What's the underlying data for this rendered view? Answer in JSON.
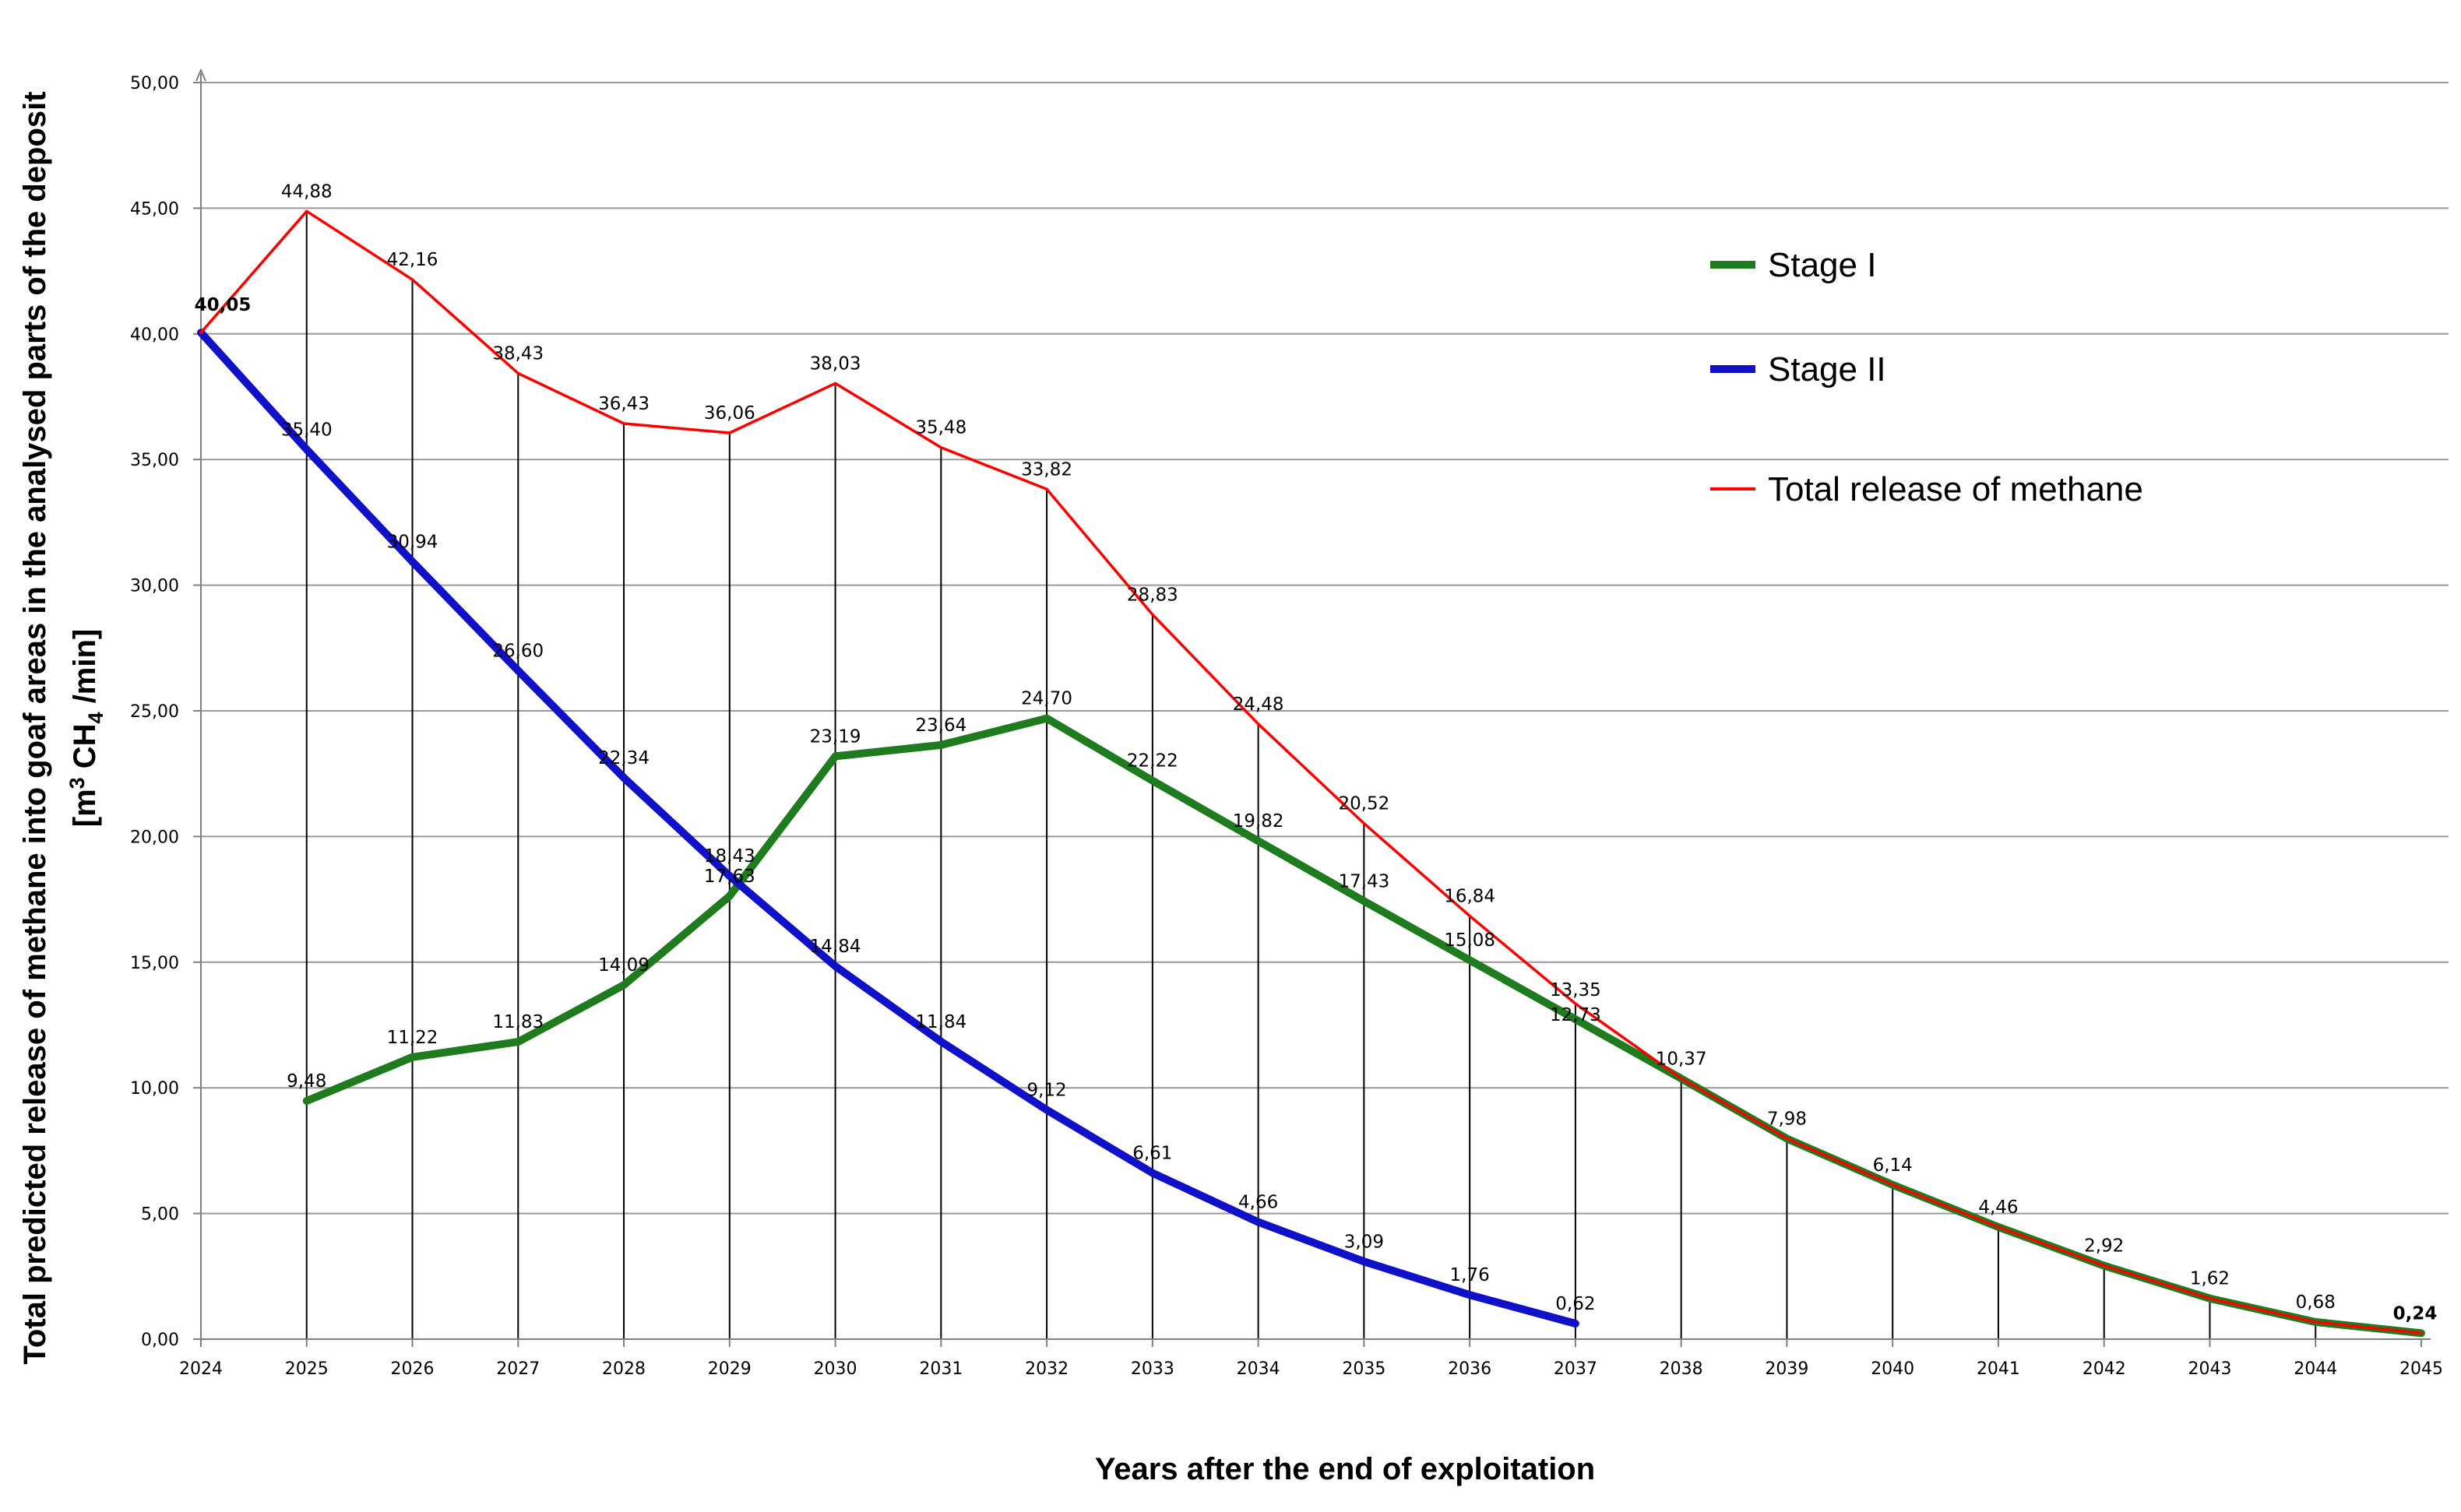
{
  "chart_data": {
    "type": "line",
    "title": "",
    "xlabel": "Years after the end of exploitation",
    "ylabel_line1": "Total predicted release of methane into goaf areas in the analysed parts of the deposit",
    "ylabel_line2_prefix": "[m",
    "ylabel_line2_sup": "3",
    "ylabel_line2_mid": " CH",
    "ylabel_line2_sub": "4",
    "ylabel_line2_suffix": " /min]",
    "ylim": [
      0,
      50
    ],
    "ytick_values": [
      0,
      5,
      10,
      15,
      20,
      25,
      30,
      35,
      40,
      45,
      50
    ],
    "ytick_labels": [
      "0,00",
      "5,00",
      "10,00",
      "15,00",
      "20,00",
      "25,00",
      "30,00",
      "35,00",
      "40,00",
      "45,00",
      "50,00"
    ],
    "categories": [
      "2024",
      "2025",
      "2026",
      "2027",
      "2028",
      "2029",
      "2030",
      "2031",
      "2032",
      "2033",
      "2034",
      "2035",
      "2036",
      "2037",
      "2038",
      "2039",
      "2040",
      "2041",
      "2042",
      "2043",
      "2044",
      "2045"
    ],
    "grid": true,
    "legend_position": "top-right",
    "series": [
      {
        "name": "Total release of methane",
        "color": "#ff0000",
        "values": [
          40.05,
          44.88,
          42.16,
          38.43,
          36.43,
          36.06,
          38.03,
          35.48,
          33.82,
          28.83,
          24.48,
          20.52,
          16.84,
          13.35,
          10.37,
          7.98,
          6.14,
          4.46,
          2.92,
          1.62,
          0.68,
          0.24
        ],
        "labels": [
          "40,05",
          "44,88",
          "42,16",
          "38,43",
          "36,43",
          "36,06",
          "38,03",
          "35,48",
          "33,82",
          "28,83",
          "24,48",
          "20,52",
          "16,84",
          "13,35",
          "10,37",
          "7,98",
          "6,14",
          "4,46",
          "2,92",
          "1,62",
          "0,68",
          "0,24"
        ]
      },
      {
        "name": "Stage I",
        "color": "#1e7b1e",
        "values": [
          null,
          9.48,
          11.22,
          11.83,
          14.09,
          17.63,
          23.19,
          23.64,
          24.7,
          22.22,
          19.82,
          17.43,
          15.08,
          12.73,
          10.37,
          7.98,
          6.14,
          4.46,
          2.92,
          1.62,
          0.68,
          0.24
        ],
        "labels": [
          null,
          "9,48",
          "11,22",
          "11,83",
          "14,09",
          "17,63",
          "23,19",
          "23,64",
          "24,70",
          "22,22",
          "19,82",
          "17,43",
          "15,08",
          "12,73",
          null,
          null,
          null,
          null,
          null,
          null,
          null,
          null
        ]
      },
      {
        "name": "Stage II",
        "color": "#1010c8",
        "values": [
          40.05,
          35.4,
          30.94,
          26.6,
          22.34,
          18.43,
          14.84,
          11.84,
          9.12,
          6.61,
          4.66,
          3.09,
          1.76,
          0.62,
          null,
          null,
          null,
          null,
          null,
          null,
          null,
          null
        ],
        "labels": [
          null,
          "35,40",
          "30,94",
          "26,60",
          "22,34",
          "18,43",
          "14,84",
          "11,84",
          "9,12",
          "6,61",
          "4,66",
          "3,09",
          "1,76",
          "0,62",
          null,
          null,
          null,
          null,
          null,
          null,
          null,
          null
        ]
      }
    ],
    "legend": [
      {
        "label": "Stage I",
        "color": "#1e7b1e"
      },
      {
        "label": "Stage II",
        "color": "#1010c8"
      },
      {
        "label": "Total release of methane",
        "color": "#ff0000"
      }
    ]
  }
}
